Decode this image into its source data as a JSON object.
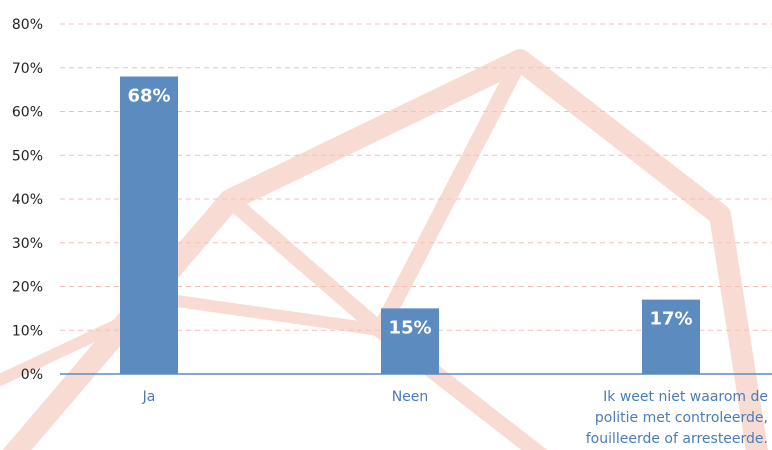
{
  "chart_data": {
    "type": "bar",
    "categories": [
      [
        "Ja"
      ],
      [
        "Neen"
      ],
      [
        "Ik weet niet waarom de",
        "politie met controleerde,",
        "fouilleerde of arresteerde."
      ]
    ],
    "values": [
      68,
      15,
      17
    ],
    "data_labels": [
      "68%",
      "15%",
      "17%"
    ],
    "ylim": [
      0,
      80
    ],
    "yticks": [
      0,
      10,
      20,
      30,
      40,
      50,
      60,
      70,
      80
    ],
    "ytick_labels": [
      "0%",
      "10%",
      "20%",
      "30%",
      "40%",
      "50%",
      "60%",
      "70%",
      "80%"
    ],
    "grid": true,
    "grid_style": "dashed",
    "colors": {
      "bar": "#5b8bbf",
      "category_text": "#4a7db5",
      "grid": "#f2c0b8",
      "axis": "#5b8bbf",
      "watermark": "#f8dcd4",
      "data_label": "#ffffff"
    }
  }
}
